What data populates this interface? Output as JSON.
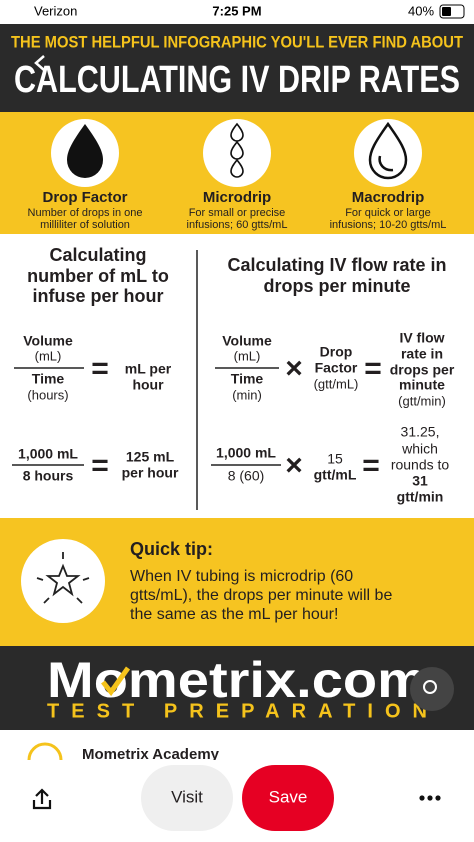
{
  "status_bar": {
    "carrier": "Verizon",
    "time": "7:25 PM",
    "battery": "40%"
  },
  "header": {
    "kicker": "THE MOST HELPFUL INFOGRAPHIC YOU'LL EVER FIND ABOUT",
    "title": "CALCULATING IV DRIP RATES"
  },
  "terms": [
    {
      "title": "Drop Factor",
      "description": [
        "Number of drops in one",
        "milliliter of solution"
      ]
    },
    {
      "title": "Microdrip",
      "description": [
        "For small or precise",
        "infusions; 60 gtts/mL"
      ]
    },
    {
      "title": "Macrodrip",
      "description": [
        "For quick or large",
        "infusions; 10-20 gtts/mL"
      ]
    }
  ],
  "operators": {
    "equals": "=",
    "times": "×"
  },
  "left": {
    "title": [
      "Calculating",
      "number of mL to",
      "infuse per hour"
    ],
    "formula": {
      "numerator": [
        "Volume",
        "(mL)"
      ],
      "denominator": [
        "Time",
        "(hours)"
      ],
      "result": [
        "mL per",
        "hour"
      ]
    },
    "example": {
      "numerator": "1,000 mL",
      "denominator": "8 hours",
      "result": [
        "125 mL",
        "per hour"
      ]
    }
  },
  "right": {
    "title": [
      "Calculating IV flow rate in",
      "drops per minute"
    ],
    "formula": {
      "numerator": [
        "Volume",
        "(mL)"
      ],
      "denominator": [
        "Time",
        "(min)"
      ],
      "factor": [
        "Drop",
        "Factor",
        "(gtt/mL)"
      ],
      "result": [
        "IV flow",
        "rate in",
        "drops per",
        "minute",
        "(gtt/min)"
      ]
    },
    "example": {
      "numerator": "1,000 mL",
      "denominator": "8 (60)",
      "factor": [
        "15",
        "gtt/mL"
      ],
      "result": [
        "31.25,",
        "which",
        "rounds to",
        "31",
        "gtt/min"
      ]
    }
  },
  "tip": {
    "title": "Quick tip:",
    "body": [
      "When IV tubing is microdrip (60",
      "gtts/mL), the drops per minute will be",
      "the same as the mL per hour!"
    ]
  },
  "brand": {
    "name": "Mometrix.com",
    "tagline": "TEST PREPARATION"
  },
  "pin": {
    "source": "Mometrix Academy",
    "visit": "Visit",
    "save": "Save"
  }
}
